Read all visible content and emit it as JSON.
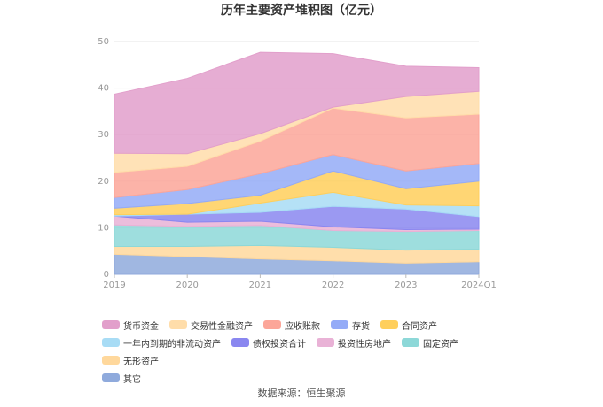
{
  "chart_data": {
    "type": "area",
    "stacked": true,
    "title": "历年主要资产堆积图（亿元）",
    "categories": [
      "2019",
      "2020",
      "2021",
      "2022",
      "2023",
      "2024Q1"
    ],
    "ylim": [
      0,
      50
    ],
    "yticks": [
      0,
      10,
      20,
      30,
      40,
      50
    ],
    "grid": true,
    "legend_position": "bottom",
    "series": [
      {
        "name": "其它",
        "color": "#8faadc",
        "values": [
          4.3,
          3.8,
          3.3,
          2.9,
          2.4,
          2.7
        ]
      },
      {
        "name": "无形资产",
        "color": "#ffd89c",
        "values": [
          1.7,
          2.2,
          2.9,
          2.9,
          2.8,
          2.7
        ]
      },
      {
        "name": "固定资产",
        "color": "#8dd8d8",
        "values": [
          4.6,
          4.3,
          4.3,
          3.6,
          4.0,
          4.0
        ]
      },
      {
        "name": "投资性房地产",
        "color": "#e9b2d6",
        "values": [
          1.9,
          0.9,
          0.9,
          0.8,
          0.4,
          0.3
        ]
      },
      {
        "name": "债权投资合计",
        "color": "#8a87f0",
        "values": [
          0.0,
          1.7,
          1.9,
          4.4,
          4.4,
          2.7
        ]
      },
      {
        "name": "一年内到期的非流动资产",
        "color": "#a8dcf5",
        "values": [
          0.3,
          0.0,
          2.0,
          3.0,
          0.9,
          2.3
        ]
      },
      {
        "name": "合同资产",
        "color": "#ffcf5c",
        "values": [
          1.4,
          2.3,
          1.7,
          4.6,
          3.5,
          5.3
        ]
      },
      {
        "name": "存货",
        "color": "#94abf7",
        "values": [
          2.3,
          3.0,
          4.6,
          3.5,
          3.8,
          3.8
        ]
      },
      {
        "name": "应收账款",
        "color": "#fca699",
        "values": [
          5.4,
          5.0,
          7.0,
          10.0,
          11.4,
          10.6
        ]
      },
      {
        "name": "交易性金融资产",
        "color": "#ffddaa",
        "values": [
          4.1,
          2.7,
          1.6,
          0.2,
          4.6,
          4.9
        ]
      },
      {
        "name": "货币资金",
        "color": "#e29fcb",
        "values": [
          12.7,
          16.2,
          17.5,
          11.5,
          6.5,
          5.1
        ]
      }
    ],
    "legend_order": [
      "货币资金",
      "交易性金融资产",
      "应收账款",
      "存货",
      "合同资产",
      "一年内到期的非流动资产",
      "债权投资合计",
      "投资性房地产",
      "固定资产",
      "无形资产",
      "其它"
    ]
  },
  "source": "数据来源：恒生聚源"
}
